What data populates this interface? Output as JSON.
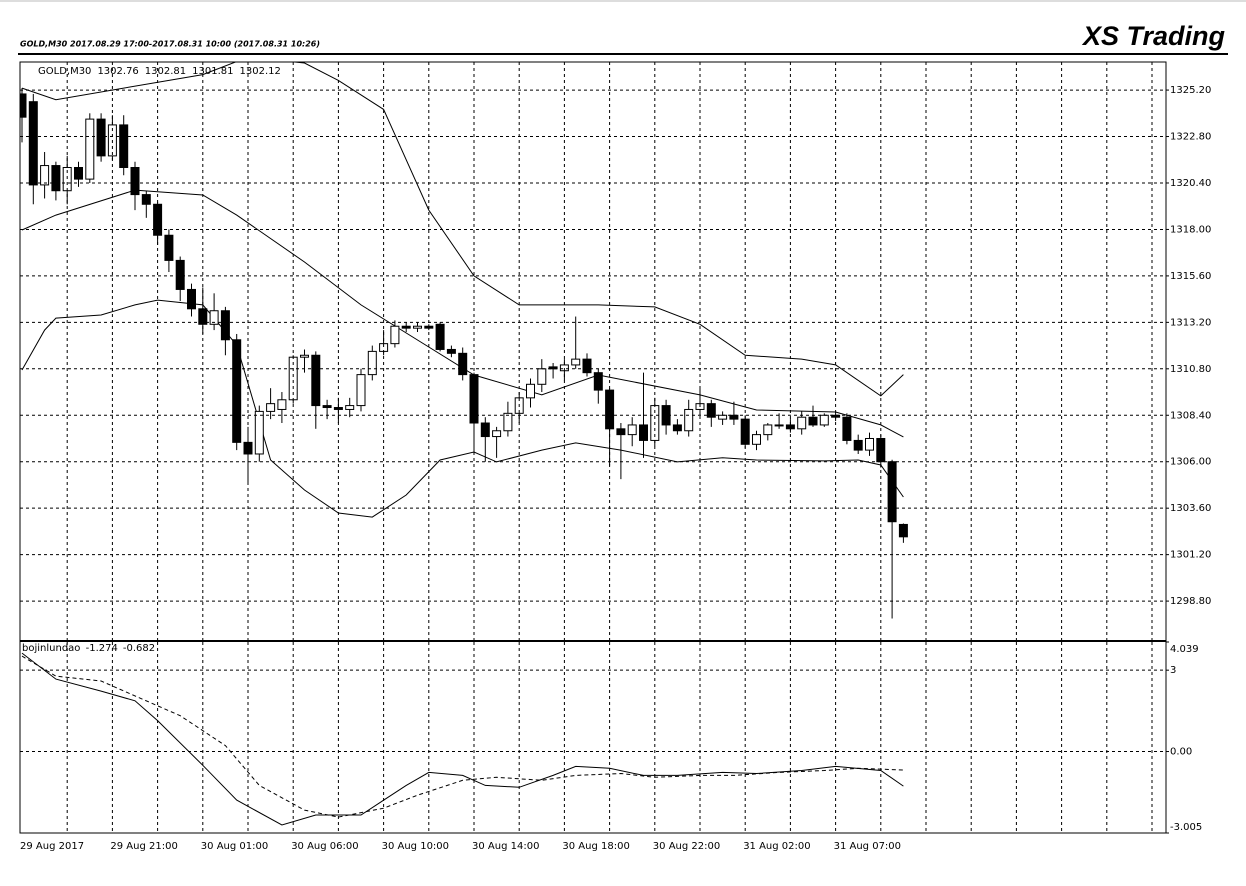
{
  "header": {
    "title": "GOLD,M30  2017.08.29 17:00-2017.08.31 10:00 (2017.08.31 10:26)",
    "brand": "XS Trading"
  },
  "chart_data": [
    {
      "type": "candlestick",
      "label": "GOLD,M30",
      "categories": [
        "29 Aug 2017",
        null,
        null,
        null,
        null,
        null,
        null,
        null,
        "29 Aug 21:00",
        null,
        null,
        null,
        null,
        null,
        null,
        null,
        "30 Aug 01:00",
        null,
        null,
        null,
        null,
        null,
        null,
        null,
        "30 Aug 06:00",
        null,
        null,
        null,
        null,
        null,
        null,
        null,
        "30 Aug 10:00",
        null,
        null,
        null,
        null,
        null,
        null,
        null,
        "30 Aug 14:00",
        null,
        null,
        null,
        null,
        null,
        null,
        null,
        "30 Aug 18:00",
        null,
        null,
        null,
        null,
        null,
        null,
        null,
        "30 Aug 22:00",
        null,
        null,
        null,
        null,
        null,
        null,
        null,
        "31 Aug 02:00",
        null,
        null,
        null,
        null,
        null,
        null,
        null,
        "31 Aug 07:00",
        null,
        null,
        null,
        null,
        null,
        null
      ],
      "open": [
        1325.0,
        1324.6,
        1320.3,
        1321.3,
        1320.0,
        1321.2,
        1320.6,
        1323.7,
        1321.8,
        1323.4,
        1321.2,
        1319.8,
        1319.3,
        1317.7,
        1316.4,
        1314.9,
        1313.9,
        1313.1,
        1313.8,
        1312.3,
        1307.0,
        1306.4,
        1308.6,
        1308.7,
        1309.2,
        1311.4,
        1311.5,
        1308.9,
        1308.8,
        1308.7,
        1308.9,
        1310.5,
        1311.7,
        1312.1,
        1313.0,
        1312.9,
        1313.0,
        1313.1,
        1311.8,
        1311.6,
        1310.5,
        1308.0,
        1307.3,
        1307.6,
        1308.5,
        1309.3,
        1310.0,
        1310.9,
        1310.7,
        1311.0,
        1311.3,
        1310.6,
        1309.7,
        1307.7,
        1307.4,
        1307.9,
        1307.1,
        1308.9,
        1307.9,
        1307.6,
        1308.7,
        1309.0,
        1308.2,
        1308.4,
        1308.2,
        1306.9,
        1307.4,
        1307.9,
        1307.9,
        1307.7,
        1308.3,
        1307.9,
        1308.4,
        1308.3,
        1307.1,
        1306.6,
        1307.2,
        1306.0,
        1302.76
      ],
      "high": [
        1325.3,
        1325.0,
        1322.0,
        1321.5,
        1321.8,
        1321.5,
        1324.0,
        1324.0,
        1323.9,
        1323.9,
        1321.5,
        1320.0,
        1319.4,
        1318.0,
        1316.6,
        1315.2,
        1315.0,
        1314.7,
        1314.0,
        1312.6,
        1307.8,
        1308.9,
        1309.8,
        1309.6,
        1311.5,
        1311.8,
        1311.7,
        1309.2,
        1309.3,
        1309.3,
        1310.8,
        1312.0,
        1312.8,
        1313.3,
        1313.2,
        1313.2,
        1313.1,
        1313.2,
        1312.0,
        1311.9,
        1310.6,
        1308.3,
        1307.8,
        1309.1,
        1309.6,
        1310.3,
        1311.3,
        1311.1,
        1311.3,
        1313.5,
        1311.6,
        1310.8,
        1309.8,
        1308.0,
        1308.3,
        1310.6,
        1309.3,
        1309.2,
        1308.2,
        1309.2,
        1309.8,
        1309.2,
        1308.6,
        1309.1,
        1308.4,
        1307.6,
        1308.0,
        1308.5,
        1308.2,
        1308.6,
        1308.9,
        1308.5,
        1308.6,
        1308.5,
        1307.4,
        1307.5,
        1307.4,
        1306.1,
        1302.81
      ],
      "low": [
        1322.5,
        1319.3,
        1319.6,
        1319.5,
        1319.3,
        1320.2,
        1320.4,
        1321.5,
        1321.6,
        1320.8,
        1319.0,
        1318.6,
        1317.2,
        1315.8,
        1314.3,
        1313.5,
        1312.6,
        1312.8,
        1311.5,
        1306.6,
        1304.8,
        1306.0,
        1308.2,
        1308.0,
        1309.0,
        1310.6,
        1307.7,
        1308.2,
        1308.0,
        1308.3,
        1308.6,
        1310.2,
        1311.5,
        1311.9,
        1312.7,
        1312.7,
        1312.8,
        1311.7,
        1311.4,
        1310.2,
        1306.5,
        1306.0,
        1306.2,
        1307.3,
        1308.0,
        1308.8,
        1309.6,
        1310.3,
        1310.2,
        1310.8,
        1310.4,
        1309.0,
        1305.8,
        1305.1,
        1306.8,
        1306.2,
        1306.8,
        1307.4,
        1307.4,
        1307.3,
        1308.4,
        1307.8,
        1307.9,
        1307.9,
        1306.7,
        1306.6,
        1307.1,
        1307.7,
        1307.5,
        1307.4,
        1307.8,
        1307.8,
        1308.1,
        1306.9,
        1306.4,
        1306.3,
        1305.7,
        1297.9,
        1301.81
      ],
      "close": [
        1323.8,
        1320.3,
        1321.3,
        1320.0,
        1321.2,
        1320.6,
        1323.7,
        1321.8,
        1323.4,
        1321.2,
        1319.8,
        1319.3,
        1317.7,
        1316.4,
        1314.9,
        1313.9,
        1313.1,
        1313.8,
        1312.3,
        1307.0,
        1306.4,
        1308.6,
        1309.0,
        1309.2,
        1311.4,
        1311.5,
        1308.9,
        1308.8,
        1308.7,
        1308.9,
        1310.5,
        1311.7,
        1312.1,
        1313.0,
        1312.9,
        1313.0,
        1312.9,
        1311.8,
        1311.6,
        1310.5,
        1308.0,
        1307.3,
        1307.6,
        1308.5,
        1309.3,
        1310.0,
        1310.8,
        1310.8,
        1311.0,
        1311.3,
        1310.6,
        1309.7,
        1307.7,
        1307.4,
        1307.9,
        1307.1,
        1308.9,
        1307.9,
        1307.6,
        1308.7,
        1309.0,
        1308.3,
        1308.4,
        1308.2,
        1306.9,
        1307.4,
        1307.9,
        1307.9,
        1307.7,
        1308.3,
        1307.9,
        1308.4,
        1308.3,
        1307.1,
        1306.6,
        1307.2,
        1306.0,
        1302.9,
        1302.12
      ],
      "up_color": "#ffffff",
      "down_color": "#000000",
      "line_color": "#000000",
      "bands": [
        {
          "color": "#000000",
          "x": [
            0,
            3,
            16,
            20,
            25,
            28,
            32,
            36,
            40,
            44,
            51,
            56,
            60,
            64,
            69,
            72,
            76,
            78
          ],
          "values": [
            1325.3,
            1324.7,
            1326.0,
            1326.9,
            1326.6,
            1325.7,
            1324.2,
            1319.0,
            1315.6,
            1314.1,
            1314.1,
            1314.0,
            1313.1,
            1311.5,
            1311.3,
            1311.0,
            1309.4,
            1310.5
          ]
        },
        {
          "color": "#000000",
          "x": [
            0,
            3,
            10,
            16,
            19,
            25,
            30,
            35,
            40,
            46,
            51,
            60,
            65,
            72,
            76,
            78
          ],
          "values": [
            1317.97,
            1318.74,
            1320.03,
            1319.78,
            1318.74,
            1316.32,
            1314.1,
            1312.29,
            1310.48,
            1309.45,
            1310.48,
            1309.45,
            1308.67,
            1308.57,
            1307.9,
            1307.28
          ]
        },
        {
          "color": "#000000",
          "x": [
            0,
            2,
            3,
            7,
            10,
            12,
            16,
            19,
            22,
            25,
            28,
            31,
            34,
            37,
            40,
            42,
            46,
            49,
            53,
            58,
            62,
            65,
            71,
            74,
            76,
            78
          ],
          "values": [
            1310.74,
            1312.8,
            1313.42,
            1313.58,
            1314.1,
            1314.35,
            1314.1,
            1312.03,
            1306.09,
            1304.54,
            1303.35,
            1303.14,
            1304.28,
            1306.09,
            1306.5,
            1305.99,
            1306.6,
            1306.97,
            1306.6,
            1305.99,
            1306.21,
            1306.09,
            1306.04,
            1306.09,
            1305.83,
            1304.18
          ]
        }
      ],
      "ylim": [
        1296.79,
        1326.65
      ],
      "yticks": [
        {
          "value": 1325.2,
          "label": "1325.20"
        },
        {
          "value": 1322.8,
          "label": "1322.80"
        },
        {
          "value": 1320.4,
          "label": "1320.40"
        },
        {
          "value": 1318.0,
          "label": "1318.00"
        },
        {
          "value": 1315.6,
          "label": "1315.60"
        },
        {
          "value": 1313.2,
          "label": "1313.20"
        },
        {
          "value": 1310.8,
          "label": "1310.80"
        },
        {
          "value": 1308.4,
          "label": "1308.40"
        },
        {
          "value": 1306.0,
          "label": "1306.00"
        },
        {
          "value": 1303.6,
          "label": "1303.60"
        },
        {
          "value": 1301.2,
          "label": "1301.20"
        },
        {
          "value": 1298.8,
          "label": "1298.80"
        }
      ],
      "grid": true
    },
    {
      "type": "line",
      "label": "bojinlundao",
      "series": [
        {
          "color": "#000000",
          "style": "solid",
          "x": [
            0,
            3,
            7,
            10,
            12,
            16,
            19,
            23,
            26,
            30,
            34,
            36,
            39,
            41,
            44,
            47,
            49,
            52,
            55,
            58,
            62,
            65,
            69,
            72,
            76,
            78
          ],
          "values": [
            3.63,
            2.67,
            2.23,
            1.87,
            1.14,
            -0.51,
            -1.79,
            -2.71,
            -2.34,
            -2.34,
            -1.25,
            -0.77,
            -0.88,
            -1.25,
            -1.32,
            -0.88,
            -0.55,
            -0.62,
            -0.88,
            -0.88,
            -0.77,
            -0.81,
            -0.7,
            -0.55,
            -0.7,
            -1.274
          ]
        },
        {
          "color": "#000000",
          "style": "dashed",
          "x": [
            0,
            3,
            7,
            10,
            14,
            18,
            21,
            25,
            28,
            32,
            35,
            39,
            42,
            46,
            49,
            53,
            56,
            60,
            63,
            67,
            71,
            74,
            78
          ],
          "values": [
            3.52,
            2.78,
            2.6,
            2.05,
            1.32,
            0.22,
            -1.25,
            -2.16,
            -2.42,
            -2.09,
            -1.61,
            -1.06,
            -0.95,
            -1.06,
            -0.88,
            -0.81,
            -0.95,
            -0.88,
            -0.88,
            -0.77,
            -0.7,
            -0.62,
            -0.682
          ]
        }
      ],
      "ylim": [
        -3.005,
        4.039
      ],
      "yticks": [
        4.039,
        3,
        {
          "value": 0,
          "label": "0.00"
        },
        -3.005
      ],
      "grid": true
    }
  ]
}
